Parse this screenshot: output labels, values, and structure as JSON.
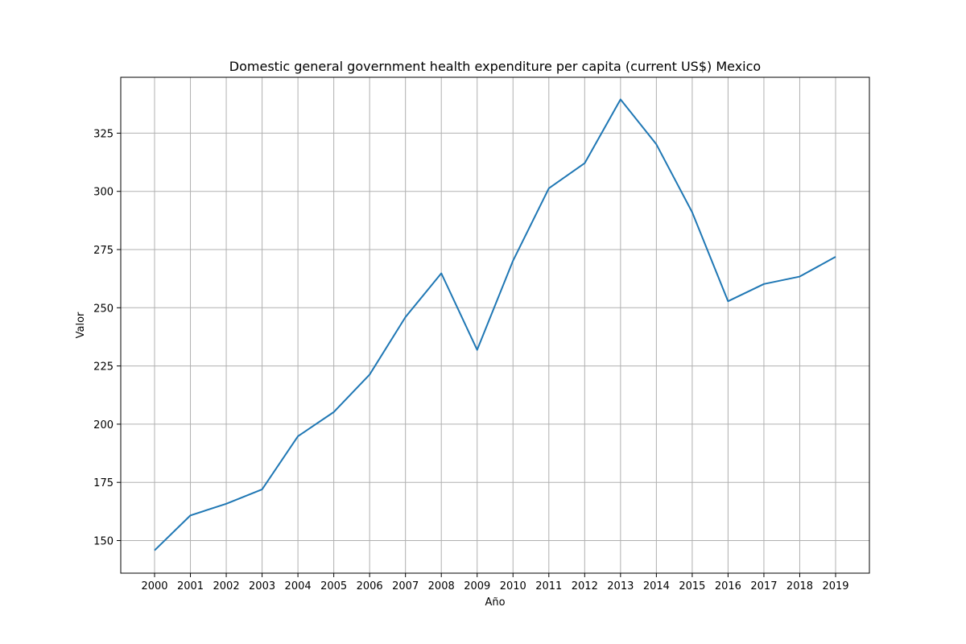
{
  "chart_data": {
    "type": "line",
    "title": "Domestic general government health expenditure per capita (current US$) Mexico",
    "xlabel": "Año",
    "ylabel": "Valor",
    "categories": [
      "2000",
      "2001",
      "2002",
      "2003",
      "2004",
      "2005",
      "2006",
      "2007",
      "2008",
      "2009",
      "2010",
      "2011",
      "2012",
      "2013",
      "2014",
      "2015",
      "2016",
      "2017",
      "2018",
      "2019"
    ],
    "series": [
      {
        "values": [
          145.8,
          160.8,
          165.8,
          172.0,
          194.8,
          205.2,
          221.3,
          246.0,
          264.8,
          231.9,
          270.2,
          301.3,
          312.1,
          339.5,
          320.2,
          291.0,
          252.8,
          260.2,
          263.4,
          271.9
        ]
      }
    ],
    "yticks": [
      150,
      175,
      200,
      225,
      250,
      275,
      300,
      325
    ],
    "ylim": [
      136,
      349
    ],
    "grid": true,
    "line_color": "#1f77b4"
  }
}
